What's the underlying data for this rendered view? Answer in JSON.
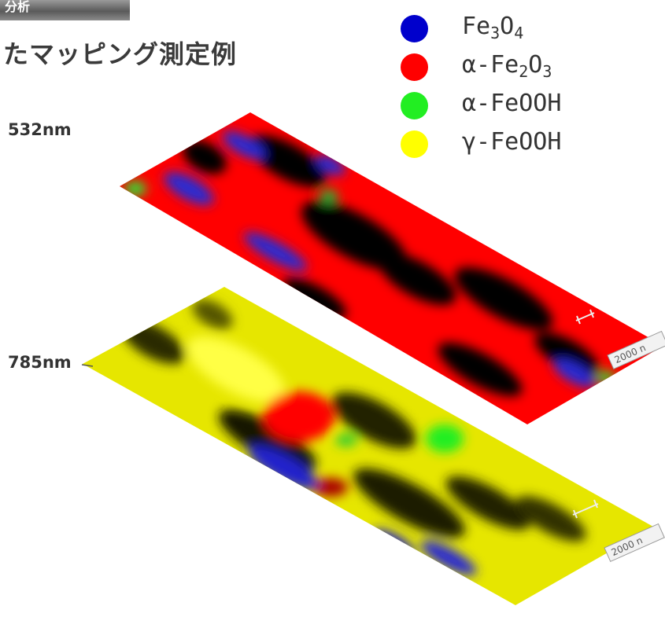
{
  "header": {
    "tab_text": "分析"
  },
  "title": "たマッピング測定例",
  "maps": [
    {
      "wavelength_label": "532nm",
      "scale_label": "2000 n",
      "base_color": "#ff0000"
    },
    {
      "wavelength_label": "785nm",
      "scale_label": "2000 n",
      "base_color": "#e6e600"
    }
  ],
  "legend": [
    {
      "prefix": "",
      "pre": "Fe",
      "sub1": "3",
      "mid": "O",
      "sub2": "4",
      "post": "",
      "color": "#0000cc"
    },
    {
      "prefix": "α-",
      "pre": "Fe",
      "sub1": "2",
      "mid": "O",
      "sub2": "3",
      "post": "",
      "color": "#ff0000"
    },
    {
      "prefix": "α-",
      "pre": "FeOOH",
      "sub1": "",
      "mid": "",
      "sub2": "",
      "post": "",
      "color": "#22ee22"
    },
    {
      "prefix": "γ-",
      "pre": "FeOOH",
      "sub1": "",
      "mid": "",
      "sub2": "",
      "post": "",
      "color": "#ffff00"
    }
  ]
}
